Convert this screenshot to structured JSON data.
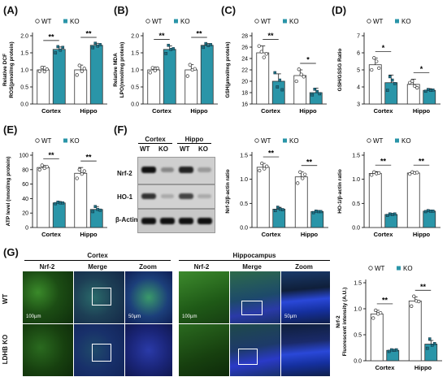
{
  "colors": {
    "ko": "#2a95a8",
    "wt": "#ffffff",
    "stroke": "#333333"
  },
  "legend": {
    "wt": "WT",
    "ko": "KO"
  },
  "chart_data": [
    {
      "panel": "(A)",
      "type": "bar",
      "categories": [
        "Cortex",
        "Hippo"
      ],
      "series": [
        {
          "name": "WT",
          "values": [
            1.0,
            1.0
          ],
          "err": [
            0.1,
            0.14
          ]
        },
        {
          "name": "KO",
          "values": [
            1.6,
            1.72
          ],
          "err": [
            0.07,
            0.06
          ]
        }
      ],
      "ylabel": "Relative DCF\nROS(pmol/mg protein)",
      "ylim": [
        0,
        2.0
      ],
      "ticks": [
        0.0,
        0.5,
        1.0,
        1.5,
        2.0
      ],
      "sig": [
        "**",
        "**"
      ],
      "points": [
        [
          [
            0.96,
            1.07,
            0.95,
            1.02
          ],
          [
            1.5,
            1.68,
            1.58,
            1.66
          ]
        ],
        [
          [
            0.85,
            1.13,
            0.96,
            1.04
          ],
          [
            1.65,
            1.78,
            1.7,
            1.74
          ]
        ]
      ]
    },
    {
      "panel": "(B)",
      "type": "bar",
      "categories": [
        "Cortex",
        "Hippo"
      ],
      "series": [
        {
          "name": "WT",
          "values": [
            1.0,
            1.0
          ],
          "err": [
            0.08,
            0.15
          ]
        },
        {
          "name": "KO",
          "values": [
            1.6,
            1.72
          ],
          "err": [
            0.1,
            0.05
          ]
        }
      ],
      "ylabel": "Relative MDA\nLPO(nmol/mg protein)",
      "ylim": [
        0,
        2.0
      ],
      "ticks": [
        0.0,
        0.5,
        1.0,
        1.5,
        2.0
      ],
      "sig": [
        "**",
        "**"
      ],
      "points": [
        [
          [
            0.92,
            1.06,
            0.98,
            1.05
          ],
          [
            1.48,
            1.72,
            1.6,
            1.62
          ]
        ],
        [
          [
            0.82,
            1.15,
            1.0,
            1.03
          ],
          [
            1.66,
            1.77,
            1.71,
            1.74
          ]
        ]
      ]
    },
    {
      "panel": "(C)",
      "type": "bar",
      "categories": [
        "Cortex",
        "Hippo"
      ],
      "series": [
        {
          "name": "WT",
          "values": [
            25.0,
            21.0
          ],
          "err": [
            1.2,
            1.0
          ]
        },
        {
          "name": "KO",
          "values": [
            20.0,
            18.0
          ],
          "err": [
            1.3,
            0.8
          ]
        }
      ],
      "ylabel": "GSH(µmol/mg protein)",
      "ylim": [
        16,
        28
      ],
      "ticks": [
        16,
        18,
        20,
        22,
        24,
        26,
        28
      ],
      "sig": [
        "**",
        "*"
      ],
      "points": [
        [
          [
            26.2,
            25.2,
            24.2,
            24.8
          ],
          [
            21.5,
            19.0,
            20.2,
            18.5
          ]
        ],
        [
          [
            20.0,
            22.1,
            21.2,
            20.8
          ],
          [
            17.6,
            18.6,
            18.2,
            17.8
          ]
        ]
      ]
    },
    {
      "panel": "(D)",
      "type": "bar",
      "categories": [
        "Cortex",
        "Hippo"
      ],
      "series": [
        {
          "name": "WT",
          "values": [
            5.3,
            4.15
          ],
          "err": [
            0.4,
            0.3
          ]
        },
        {
          "name": "KO",
          "values": [
            4.25,
            3.8
          ],
          "err": [
            0.45,
            0.1
          ]
        }
      ],
      "ylabel": "GSH/GSSG Ratio",
      "ylim": [
        3,
        7
      ],
      "ticks": [
        3,
        4,
        5,
        6,
        7
      ],
      "sig": [
        "*",
        "*"
      ],
      "points": [
        [
          [
            5.0,
            5.7,
            5.5,
            5.1
          ],
          [
            3.8,
            4.6,
            4.4,
            4.2
          ]
        ],
        [
          [
            4.25,
            4.35,
            4.05,
            3.95
          ],
          [
            3.75,
            3.85,
            3.8,
            3.82
          ]
        ]
      ]
    },
    {
      "panel": "(E)",
      "type": "bar",
      "categories": [
        "Cortex",
        "Hippo"
      ],
      "series": [
        {
          "name": "WT",
          "values": [
            83,
            75
          ],
          "err": [
            3,
            8
          ]
        },
        {
          "name": "KO",
          "values": [
            34,
            25
          ],
          "err": [
            2,
            4
          ]
        }
      ],
      "ylabel": "ATP level (nmol/mg protein)",
      "ylim": [
        0,
        100
      ],
      "ticks": [
        0,
        20,
        40,
        60,
        80,
        100
      ],
      "sig": [
        "**",
        "**"
      ],
      "points": [
        [
          [
            80,
            86,
            82,
            84
          ],
          [
            33,
            35,
            34,
            34
          ]
        ],
        [
          [
            68,
            80,
            74,
            78
          ],
          [
            22,
            29,
            25,
            24
          ]
        ]
      ]
    },
    {
      "panel": "(F1)",
      "type": "bar",
      "categories": [
        "Cortex",
        "Hippo"
      ],
      "series": [
        {
          "name": "WT",
          "values": [
            1.25,
            1.05
          ],
          "err": [
            0.08,
            0.1
          ]
        },
        {
          "name": "KO",
          "values": [
            0.38,
            0.33
          ],
          "err": [
            0.04,
            0.02
          ]
        }
      ],
      "ylabel": "Nrf-2/β-actin ratio",
      "ylim": [
        0,
        1.5
      ],
      "ticks": [
        0.0,
        0.5,
        1.0,
        1.5
      ],
      "sig": [
        "**",
        "**"
      ],
      "points": [
        [
          [
            1.18,
            1.33,
            1.22,
            1.27
          ],
          [
            0.35,
            0.42,
            0.38,
            0.37
          ]
        ],
        [
          [
            0.92,
            1.15,
            1.02,
            1.1
          ],
          [
            0.31,
            0.34,
            0.33,
            0.33
          ]
        ]
      ]
    },
    {
      "panel": "(F2)",
      "type": "bar",
      "categories": [
        "Cortex",
        "Hippo"
      ],
      "series": [
        {
          "name": "WT",
          "values": [
            1.12,
            1.13
          ],
          "err": [
            0.04,
            0.03
          ]
        },
        {
          "name": "KO",
          "values": [
            0.27,
            0.34
          ],
          "err": [
            0.02,
            0.02
          ]
        }
      ],
      "ylabel": "HO-1/β-actin ratio",
      "ylim": [
        0,
        1.5
      ],
      "ticks": [
        0.0,
        0.5,
        1.0,
        1.5
      ],
      "sig": [
        "**",
        "**"
      ],
      "points": [
        [
          [
            1.09,
            1.15,
            1.12,
            1.13
          ],
          [
            0.25,
            0.28,
            0.27,
            0.28
          ]
        ],
        [
          [
            1.11,
            1.15,
            1.13,
            1.14
          ],
          [
            0.33,
            0.35,
            0.34,
            0.34
          ]
        ]
      ]
    },
    {
      "panel": "(G)",
      "type": "bar",
      "categories": [
        "Cortex",
        "Hippo"
      ],
      "series": [
        {
          "name": "WT",
          "values": [
            0.9,
            1.15
          ],
          "err": [
            0.07,
            0.08
          ]
        },
        {
          "name": "KO",
          "values": [
            0.2,
            0.32
          ],
          "err": [
            0.02,
            0.07
          ]
        }
      ],
      "ylabel": "Nrf-2\nFluorescent intensity  (A.U.)",
      "ylim": [
        0,
        1.5
      ],
      "ticks": [
        0.0,
        0.5,
        1.0,
        1.5
      ],
      "sig": [
        "**",
        "**"
      ],
      "points": [
        [
          [
            0.82,
            0.97,
            0.9,
            0.92
          ],
          [
            0.18,
            0.21,
            0.2,
            0.21
          ]
        ],
        [
          [
            1.05,
            1.24,
            1.15,
            1.14
          ],
          [
            0.24,
            0.42,
            0.3,
            0.33
          ]
        ]
      ]
    }
  ],
  "panels": {
    "a": "(A)",
    "b": "(B)",
    "c": "(C)",
    "d": "(D)",
    "e": "(E)",
    "f": "(F)",
    "g": "(G)"
  },
  "western": {
    "groups": [
      "Cortex",
      "Hippo"
    ],
    "columns": [
      "WT",
      "KO",
      "WT",
      "KO"
    ],
    "rows": [
      "Nrf-2",
      "HO-1",
      "β-Actin"
    ]
  },
  "micro": {
    "regions": [
      "Cortex",
      "Hippocampus"
    ],
    "cols": [
      "Nrf-2",
      "Merge",
      "Zoom",
      "Nrf-2",
      "Merge",
      "Zoom"
    ],
    "rows": [
      "WT",
      "LDHB KO"
    ],
    "scale_100": "100µm",
    "scale_50": "50µm"
  }
}
